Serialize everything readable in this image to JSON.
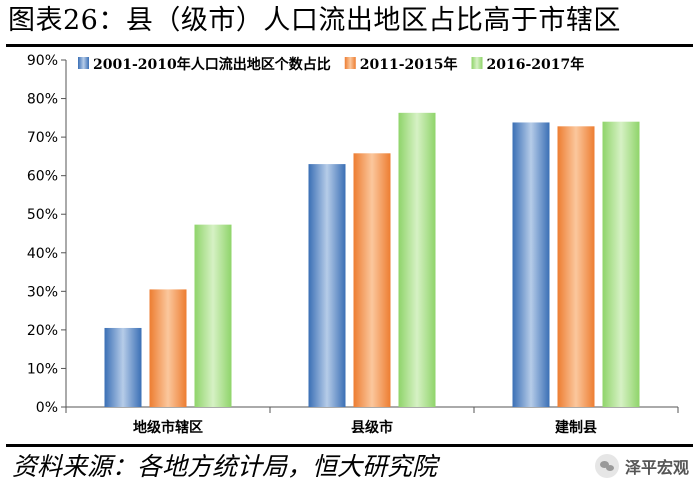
{
  "header": {
    "title": "图表26：县（级市）人口流出地区占比高于市辖区"
  },
  "footer": {
    "source": "资料来源：各地方统计局，恒大研究院",
    "watermark": "泽平宏观"
  },
  "colors": {
    "series": [
      "#3a6fb5",
      "#ed7d31",
      "#8fd46a"
    ],
    "series_light": [
      "#b6cce8",
      "#fbc79d",
      "#d6f1c4"
    ],
    "axis": "#555555"
  },
  "chart_data": {
    "type": "bar",
    "title": "",
    "xlabel": "",
    "ylabel": "",
    "categories": [
      "地级市辖区",
      "县级市",
      "建制县"
    ],
    "series": [
      {
        "name": "2001-2010年人口流出地区个数占比",
        "values": [
          20.5,
          63.0,
          73.8
        ]
      },
      {
        "name": "2011-2015年",
        "values": [
          30.5,
          65.8,
          72.8
        ]
      },
      {
        "name": "2016-2017年",
        "values": [
          47.3,
          76.3,
          74.0
        ]
      }
    ],
    "ylim": [
      0,
      90
    ],
    "yticks": [
      "0%",
      "10%",
      "20%",
      "30%",
      "40%",
      "50%",
      "60%",
      "70%",
      "80%",
      "90%"
    ],
    "grid": false,
    "legend": "top"
  }
}
